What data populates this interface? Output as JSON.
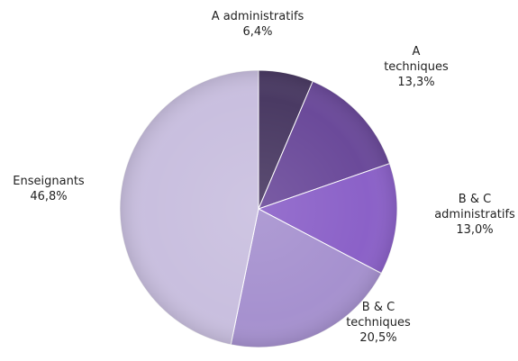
{
  "chart_data": {
    "type": "pie",
    "start_angle_deg": 0,
    "direction": "clockwise",
    "slices": [
      {
        "label_lines": [
          "A administratifs"
        ],
        "value_text": "6,4%",
        "value": 6.4,
        "color": "#4a3a63"
      },
      {
        "label_lines": [
          "A",
          "techniques"
        ],
        "value_text": "13,3%",
        "value": 13.3,
        "color": "#6b4a9a"
      },
      {
        "label_lines": [
          "B & C",
          "administratifs"
        ],
        "value_text": "13,0%",
        "value": 13.0,
        "color": "#8b61c8"
      },
      {
        "label_lines": [
          "B & C",
          "techniques"
        ],
        "value_text": "20,5%",
        "value": 20.5,
        "color": "#a691cf"
      },
      {
        "label_lines": [
          "Enseignants"
        ],
        "value_text": "46,8%",
        "value": 46.8,
        "color": "#c9bfdf"
      }
    ]
  }
}
